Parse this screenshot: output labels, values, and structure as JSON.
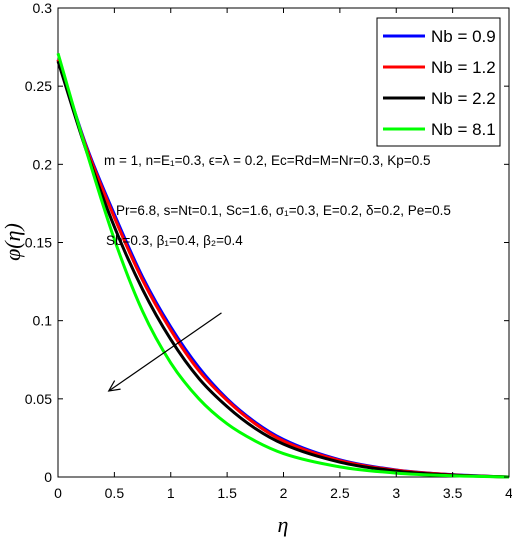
{
  "chart_data": {
    "type": "line",
    "xlabel": "η",
    "ylabel": "φ(η)",
    "xlim": [
      0,
      4
    ],
    "ylim": [
      0,
      0.3
    ],
    "x_ticks": [
      "0",
      "0.5",
      "1",
      "1.5",
      "2",
      "2.5",
      "3",
      "3.5",
      "4"
    ],
    "y_ticks": [
      "0",
      "0.05",
      "0.1",
      "0.15",
      "0.2",
      "0.25",
      "0.3"
    ],
    "grid": false,
    "legend_position": "top-right",
    "x": [
      0,
      0.25,
      0.5,
      0.75,
      1.0,
      1.25,
      1.5,
      1.75,
      2.0,
      2.5,
      3.0,
      3.5,
      4.0
    ],
    "series": [
      {
        "name": "Nb = 0.9",
        "color": "#0000ff",
        "values": [
          0.267,
          0.212,
          0.168,
          0.128,
          0.096,
          0.07,
          0.05,
          0.035,
          0.024,
          0.011,
          0.0045,
          0.0015,
          0.0
        ]
      },
      {
        "name": "Nb = 1.2",
        "color": "#ff0000",
        "values": [
          0.267,
          0.211,
          0.166,
          0.126,
          0.094,
          0.068,
          0.049,
          0.034,
          0.023,
          0.0105,
          0.0043,
          0.0014,
          0.0
        ]
      },
      {
        "name": "Nb = 2.2",
        "color": "#000000",
        "values": [
          0.266,
          0.209,
          0.16,
          0.12,
          0.088,
          0.063,
          0.045,
          0.031,
          0.021,
          0.0095,
          0.0038,
          0.0012,
          0.0
        ]
      },
      {
        "name": "Nb = 8.1",
        "color": "#00ff00",
        "values": [
          0.271,
          0.209,
          0.152,
          0.106,
          0.073,
          0.05,
          0.034,
          0.023,
          0.015,
          0.0065,
          0.0025,
          0.0008,
          0.0
        ]
      }
    ],
    "annotations": [
      "m = 1, n=E₁=0.3, ϵ=λ = 0.2, Ec=Rd=M=Nr=0.3, Kp=0.5",
      "Pr=6.8, s=Nt=0.1, Sc=1.6, σ₁=0.3, E=0.2, δ=0.2, Pe=0.5",
      "Sb=0.3, β₁=0.4, β₂=0.4"
    ],
    "arrow": {
      "from": [
        1.45,
        0.105
      ],
      "to": [
        0.45,
        0.055
      ]
    }
  }
}
